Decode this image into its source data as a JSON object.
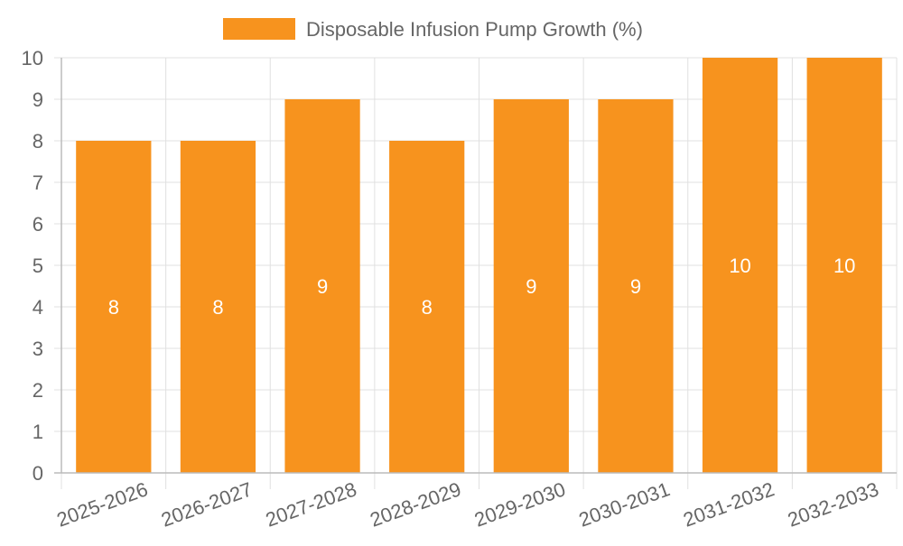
{
  "chart_data": {
    "type": "bar",
    "categories": [
      "2025-2026",
      "2026-2027",
      "2027-2028",
      "2028-2029",
      "2029-2030",
      "2030-2031",
      "2031-2032",
      "2032-2033"
    ],
    "series": [
      {
        "name": "Disposable Infusion Pump Growth (%)",
        "values": [
          8,
          8,
          9,
          8,
          9,
          9,
          10,
          10
        ],
        "color": "#f7931e"
      }
    ],
    "ylim": [
      0,
      10
    ],
    "yticks": [
      0,
      1,
      2,
      3,
      4,
      5,
      6,
      7,
      8,
      9,
      10
    ],
    "grid": true,
    "legend_position": "top-center",
    "data_labels": true,
    "data_label_color": "#ffffff",
    "grid_color": "#e0e0e0",
    "axis_color": "#bbbbbb",
    "tick_label_color": "#666666"
  }
}
